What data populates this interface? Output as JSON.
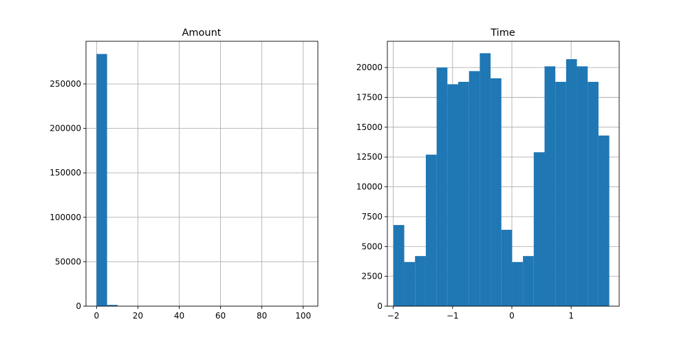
{
  "chart_data": [
    {
      "type": "bar",
      "subtype": "histogram",
      "title": "Amount",
      "xlabel": "",
      "ylabel": "",
      "xlim": [
        -5.1,
        107.1
      ],
      "ylim": [
        0,
        298000
      ],
      "xticks": [
        0,
        20,
        40,
        60,
        80,
        100
      ],
      "xtick_labels": [
        "0",
        "20",
        "40",
        "60",
        "80",
        "100"
      ],
      "yticks": [
        0,
        50000,
        100000,
        150000,
        200000,
        250000
      ],
      "ytick_labels": [
        "0",
        "50000",
        "100000",
        "150000",
        "200000",
        "250000"
      ],
      "grid": true,
      "color": "#1f77b4",
      "bins": [
        {
          "x0": 0.0,
          "x1": 5.1,
          "value": 283700
        },
        {
          "x0": 5.1,
          "x1": 10.2,
          "value": 1400
        },
        {
          "x0": 10.2,
          "x1": 15.3,
          "value": 150
        },
        {
          "x0": 15.3,
          "x1": 20.4,
          "value": 50
        },
        {
          "x0": 20.4,
          "x1": 25.5,
          "value": 20
        },
        {
          "x0": 25.5,
          "x1": 30.6,
          "value": 10
        },
        {
          "x0": 30.6,
          "x1": 35.7,
          "value": 5
        },
        {
          "x0": 35.7,
          "x1": 40.8,
          "value": 3
        },
        {
          "x0": 40.8,
          "x1": 45.9,
          "value": 2
        },
        {
          "x0": 45.9,
          "x1": 51.0,
          "value": 1
        },
        {
          "x0": 51.0,
          "x1": 56.1,
          "value": 1
        },
        {
          "x0": 56.1,
          "x1": 61.2,
          "value": 1
        },
        {
          "x0": 61.2,
          "x1": 66.3,
          "value": 1
        },
        {
          "x0": 66.3,
          "x1": 71.4,
          "value": 0
        },
        {
          "x0": 71.4,
          "x1": 76.5,
          "value": 1
        },
        {
          "x0": 76.5,
          "x1": 81.6,
          "value": 0
        },
        {
          "x0": 81.6,
          "x1": 86.7,
          "value": 0
        },
        {
          "x0": 86.7,
          "x1": 91.8,
          "value": 0
        },
        {
          "x0": 91.8,
          "x1": 96.9,
          "value": 0
        },
        {
          "x0": 96.9,
          "x1": 102.0,
          "value": 1
        }
      ]
    },
    {
      "type": "bar",
      "subtype": "histogram",
      "title": "Time",
      "xlabel": "",
      "ylabel": "",
      "xlim": [
        -2.1,
        1.81
      ],
      "ylim": [
        0,
        22200
      ],
      "xticks": [
        -2,
        -1,
        0,
        1
      ],
      "xtick_labels": [
        "−2",
        "−1",
        "0",
        "1"
      ],
      "yticks": [
        0,
        2500,
        5000,
        7500,
        10000,
        12500,
        15000,
        17500,
        20000
      ],
      "ytick_labels": [
        "0",
        "2500",
        "5000",
        "7500",
        "10000",
        "12500",
        "15000",
        "17500",
        "20000"
      ],
      "grid": true,
      "color": "#1f77b4",
      "bins": [
        {
          "x0": -1.997,
          "x1": -1.815,
          "value": 6800
        },
        {
          "x0": -1.815,
          "x1": -1.633,
          "value": 3700
        },
        {
          "x0": -1.633,
          "x1": -1.451,
          "value": 4200
        },
        {
          "x0": -1.451,
          "x1": -1.269,
          "value": 12700
        },
        {
          "x0": -1.269,
          "x1": -1.087,
          "value": 20000
        },
        {
          "x0": -1.087,
          "x1": -0.905,
          "value": 18600
        },
        {
          "x0": -0.905,
          "x1": -0.723,
          "value": 18800
        },
        {
          "x0": -0.723,
          "x1": -0.541,
          "value": 19700
        },
        {
          "x0": -0.541,
          "x1": -0.359,
          "value": 21200
        },
        {
          "x0": -0.359,
          "x1": -0.177,
          "value": 19100
        },
        {
          "x0": -0.177,
          "x1": 0.005,
          "value": 6400
        },
        {
          "x0": 0.005,
          "x1": 0.187,
          "value": 3700
        },
        {
          "x0": 0.187,
          "x1": 0.369,
          "value": 4200
        },
        {
          "x0": 0.369,
          "x1": 0.551,
          "value": 12900
        },
        {
          "x0": 0.551,
          "x1": 0.733,
          "value": 20100
        },
        {
          "x0": 0.733,
          "x1": 0.915,
          "value": 18800
        },
        {
          "x0": 0.915,
          "x1": 1.097,
          "value": 20700
        },
        {
          "x0": 1.097,
          "x1": 1.279,
          "value": 20100
        },
        {
          "x0": 1.279,
          "x1": 1.461,
          "value": 18800
        },
        {
          "x0": 1.461,
          "x1": 1.643,
          "value": 14300
        }
      ]
    }
  ]
}
